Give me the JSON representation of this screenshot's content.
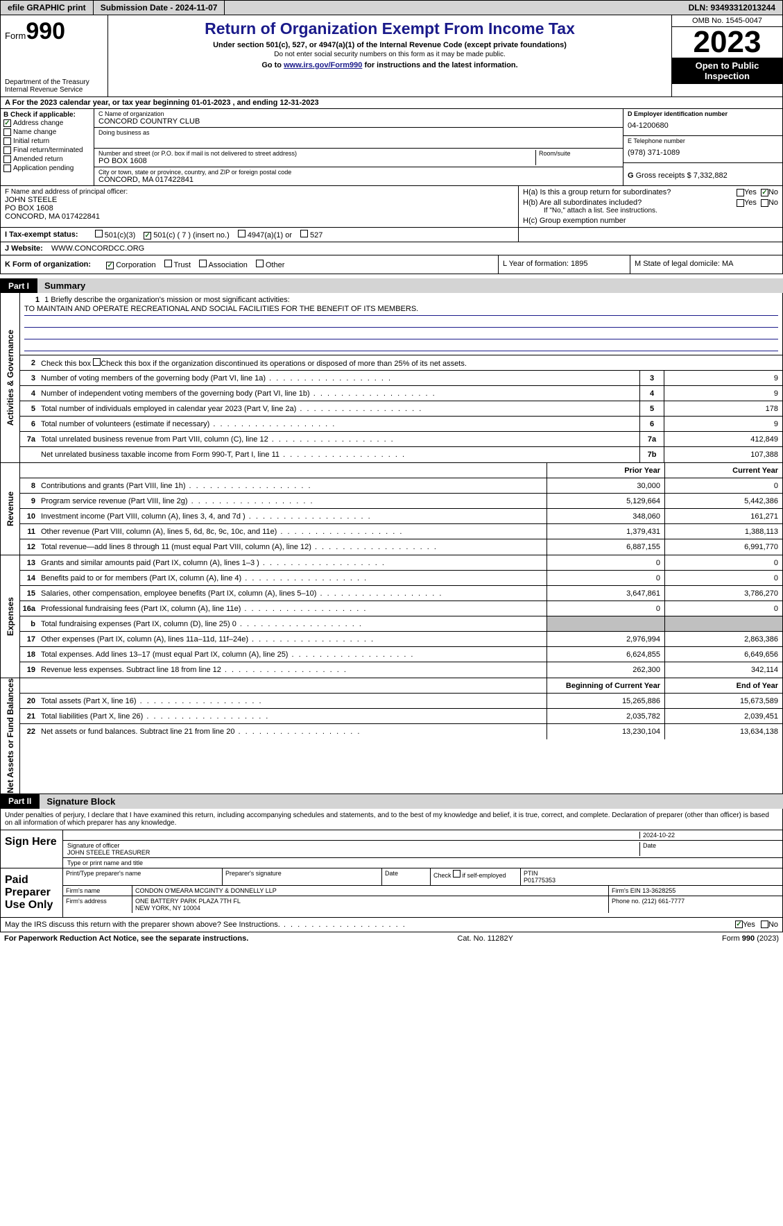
{
  "topbar": {
    "efile": "efile GRAPHIC print",
    "submission": "Submission Date - 2024-11-07",
    "dln": "DLN: 93493312013244"
  },
  "header": {
    "form_label": "Form",
    "form_num": "990",
    "dept": "Department of the Treasury\nInternal Revenue Service",
    "title": "Return of Organization Exempt From Income Tax",
    "subtitle": "Under section 501(c), 527, or 4947(a)(1) of the Internal Revenue Code (except private foundations)",
    "ssn_note": "Do not enter social security numbers on this form as it may be made public.",
    "goto_prefix": "Go to ",
    "goto_link": "www.irs.gov/Form990",
    "goto_suffix": " for instructions and the latest information.",
    "omb": "OMB No. 1545-0047",
    "year": "2023",
    "open": "Open to Public Inspection"
  },
  "line_a": "For the 2023 calendar year, or tax year beginning 01-01-2023   , and ending 12-31-2023",
  "box_b": {
    "label": "B Check if applicable:",
    "items": [
      "Address change",
      "Name change",
      "Initial return",
      "Final return/terminated",
      "Amended return",
      "Application pending"
    ],
    "checked_index": 0
  },
  "box_c": {
    "name_lbl": "C Name of organization",
    "name": "CONCORD COUNTRY CLUB",
    "dba_lbl": "Doing business as",
    "dba": "",
    "addr_lbl": "Number and street (or P.O. box if mail is not delivered to street address)",
    "room_lbl": "Room/suite",
    "addr": "PO BOX 1608",
    "city_lbl": "City or town, state or province, country, and ZIP or foreign postal code",
    "city": "CONCORD, MA  017422841"
  },
  "box_d": {
    "lbl": "D Employer identification number",
    "val": "04-1200680"
  },
  "box_e": {
    "lbl": "E Telephone number",
    "val": "(978) 371-1089"
  },
  "box_g": {
    "lbl": "G",
    "txt": "Gross receipts $ 7,332,882"
  },
  "box_f": {
    "lbl": "F  Name and address of principal officer:",
    "name": "JOHN STEELE",
    "addr1": "PO BOX 1608",
    "addr2": "CONCORD, MA  017422841"
  },
  "box_h": {
    "ha_lbl": "H(a)  Is this a group return for subordinates?",
    "hb_lbl": "H(b)  Are all subordinates included?",
    "hb_note": "If \"No,\" attach a list. See instructions.",
    "hc_lbl": "H(c)  Group exemption number",
    "yes": "Yes",
    "no": "No"
  },
  "row_i": {
    "lbl": "I   Tax-exempt status:",
    "opts": [
      "501(c)(3)",
      "501(c) ( 7 ) (insert no.)",
      "4947(a)(1) or",
      "527"
    ],
    "checked": 1
  },
  "row_j": {
    "lbl": "J   Website:",
    "val": "WWW.CONCORDCC.ORG"
  },
  "row_k": {
    "lbl": "K Form of organization:",
    "opts": [
      "Corporation",
      "Trust",
      "Association",
      "Other"
    ],
    "checked": 0
  },
  "row_l": {
    "lbl": "L Year of formation: 1895"
  },
  "row_m": {
    "lbl": "M State of legal domicile: MA"
  },
  "part1": {
    "num": "Part I",
    "title": "Summary"
  },
  "mission": {
    "line1_lbl": "1  Briefly describe the organization's mission or most significant activities:",
    "text": "TO MAINTAIN AND OPERATE RECREATIONAL AND SOCIAL FACILITIES FOR THE BENEFIT OF ITS MEMBERS."
  },
  "gov_lines": {
    "l2": "Check this box        if the organization discontinued its operations or disposed of more than 25% of its net assets.",
    "l3": {
      "txt": "Number of voting members of the governing body (Part VI, line 1a)",
      "num": "3",
      "val": "9"
    },
    "l4": {
      "txt": "Number of independent voting members of the governing body (Part VI, line 1b)",
      "num": "4",
      "val": "9"
    },
    "l5": {
      "txt": "Total number of individuals employed in calendar year 2023 (Part V, line 2a)",
      "num": "5",
      "val": "178"
    },
    "l6": {
      "txt": "Total number of volunteers (estimate if necessary)",
      "num": "6",
      "val": "9"
    },
    "l7a": {
      "txt": "Total unrelated business revenue from Part VIII, column (C), line 12",
      "num": "7a",
      "val": "412,849"
    },
    "l7b": {
      "txt": "Net unrelated business taxable income from Form 990-T, Part I, line 11",
      "num": "7b",
      "val": "107,388"
    }
  },
  "rev_hdr": {
    "prior": "Prior Year",
    "curr": "Current Year"
  },
  "revenue": [
    {
      "n": "8",
      "txt": "Contributions and grants (Part VIII, line 1h)",
      "p": "30,000",
      "c": "0"
    },
    {
      "n": "9",
      "txt": "Program service revenue (Part VIII, line 2g)",
      "p": "5,129,664",
      "c": "5,442,386"
    },
    {
      "n": "10",
      "txt": "Investment income (Part VIII, column (A), lines 3, 4, and 7d )",
      "p": "348,060",
      "c": "161,271"
    },
    {
      "n": "11",
      "txt": "Other revenue (Part VIII, column (A), lines 5, 6d, 8c, 9c, 10c, and 11e)",
      "p": "1,379,431",
      "c": "1,388,113"
    },
    {
      "n": "12",
      "txt": "Total revenue—add lines 8 through 11 (must equal Part VIII, column (A), line 12)",
      "p": "6,887,155",
      "c": "6,991,770"
    }
  ],
  "expenses": [
    {
      "n": "13",
      "txt": "Grants and similar amounts paid (Part IX, column (A), lines 1–3 )",
      "p": "0",
      "c": "0"
    },
    {
      "n": "14",
      "txt": "Benefits paid to or for members (Part IX, column (A), line 4)",
      "p": "0",
      "c": "0"
    },
    {
      "n": "15",
      "txt": "Salaries, other compensation, employee benefits (Part IX, column (A), lines 5–10)",
      "p": "3,647,861",
      "c": "3,786,270"
    },
    {
      "n": "16a",
      "txt": "Professional fundraising fees (Part IX, column (A), line 11e)",
      "p": "0",
      "c": "0"
    },
    {
      "n": "b",
      "txt": "Total fundraising expenses (Part IX, column (D), line 25) 0",
      "p": "",
      "c": "",
      "shade": true
    },
    {
      "n": "17",
      "txt": "Other expenses (Part IX, column (A), lines 11a–11d, 11f–24e)",
      "p": "2,976,994",
      "c": "2,863,386"
    },
    {
      "n": "18",
      "txt": "Total expenses. Add lines 13–17 (must equal Part IX, column (A), line 25)",
      "p": "6,624,855",
      "c": "6,649,656"
    },
    {
      "n": "19",
      "txt": "Revenue less expenses. Subtract line 18 from line 12",
      "p": "262,300",
      "c": "342,114"
    }
  ],
  "na_hdr": {
    "prior": "Beginning of Current Year",
    "curr": "End of Year"
  },
  "netassets": [
    {
      "n": "20",
      "txt": "Total assets (Part X, line 16)",
      "p": "15,265,886",
      "c": "15,673,589"
    },
    {
      "n": "21",
      "txt": "Total liabilities (Part X, line 26)",
      "p": "2,035,782",
      "c": "2,039,451"
    },
    {
      "n": "22",
      "txt": "Net assets or fund balances. Subtract line 21 from line 20",
      "p": "13,230,104",
      "c": "13,634,138"
    }
  ],
  "part2": {
    "num": "Part II",
    "title": "Signature Block"
  },
  "sig": {
    "intro": "Under penalties of perjury, I declare that I have examined this return, including accompanying schedules and statements, and to the best of my knowledge and belief, it is true, correct, and complete. Declaration of preparer (other than officer) is based on all information of which preparer has any knowledge.",
    "sign_here": "Sign Here",
    "date": "2024-10-22",
    "sig_of_officer": "Signature of officer",
    "officer": "JOHN STEELE TREASURER",
    "type_name": "Type or print name and title",
    "date_lbl": "Date",
    "paid_prep": "Paid Preparer Use Only",
    "print_name": "Print/Type preparer's name",
    "prep_sig": "Preparer's signature",
    "check_self": "Check        if self-employed",
    "ptin_lbl": "PTIN",
    "ptin": "P01775353",
    "firm_name_lbl": "Firm's name",
    "firm_name": "CONDON O'MEARA MCGINTY & DONNELLY LLP",
    "firm_ein_lbl": "Firm's EIN",
    "firm_ein": "13-3628255",
    "firm_addr_lbl": "Firm's address",
    "firm_addr1": "ONE BATTERY PARK PLAZA 7TH FL",
    "firm_addr2": "NEW YORK, NY  10004",
    "phone_lbl": "Phone no.",
    "phone": "(212) 661-7777",
    "may_irs": "May the IRS discuss this return with the preparer shown above? See Instructions.",
    "yes": "Yes",
    "no": "No"
  },
  "footer": {
    "left": "For Paperwork Reduction Act Notice, see the separate instructions.",
    "mid": "Cat. No. 11282Y",
    "right": "Form 990 (2023)"
  },
  "colors": {
    "link": "#1a1a8a",
    "check_green": "#1a6b1a",
    "gray_bg": "#d4d4d4",
    "shade": "#c0c0c0"
  }
}
